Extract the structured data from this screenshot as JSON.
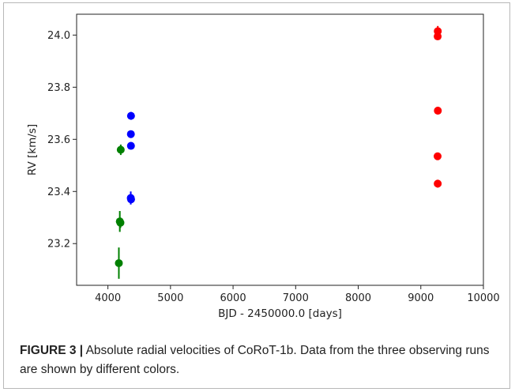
{
  "caption": {
    "label": "FIGURE 3 |",
    "text": "Absolute radial velocities of CoRoT-1b. Data from the three observing runs are shown by different colors."
  },
  "chart_data": {
    "type": "scatter",
    "xlabel": "BJD - 2450000.0 [days]",
    "ylabel": "RV [km/s]",
    "xlim": [
      3500,
      10000
    ],
    "ylim": [
      23.04,
      24.08
    ],
    "xticks": [
      4000,
      5000,
      6000,
      7000,
      8000,
      9000,
      10000
    ],
    "yticks": [
      23.2,
      23.4,
      23.6,
      23.8,
      24.0
    ],
    "ytick_labels": [
      "23.2",
      "23.4",
      "23.6",
      "23.8",
      "24.0"
    ],
    "grid": false,
    "series": [
      {
        "color": "#008000",
        "points": [
          {
            "x": 4175,
            "y": 23.125,
            "err": 0.06
          },
          {
            "x": 4190,
            "y": 23.285,
            "err": 0.04
          },
          {
            "x": 4200,
            "y": 23.28,
            "err": 0.02
          },
          {
            "x": 4205,
            "y": 23.56,
            "err": 0.02
          }
        ]
      },
      {
        "color": "#0000ff",
        "points": [
          {
            "x": 4365,
            "y": 23.375,
            "err": 0.025
          },
          {
            "x": 4370,
            "y": 23.37,
            "err": 0.015
          },
          {
            "x": 4368,
            "y": 23.575,
            "err": 0.01
          },
          {
            "x": 4367,
            "y": 23.62,
            "err": 0.01
          },
          {
            "x": 4369,
            "y": 23.69,
            "err": 0.015
          }
        ]
      },
      {
        "color": "#ff0000",
        "points": [
          {
            "x": 9270,
            "y": 23.43,
            "err": 0.015
          },
          {
            "x": 9268,
            "y": 23.535,
            "err": 0.01
          },
          {
            "x": 9272,
            "y": 23.71,
            "err": 0.015
          },
          {
            "x": 9269,
            "y": 23.995,
            "err": 0.01
          },
          {
            "x": 9271,
            "y": 24.015,
            "err": 0.02
          }
        ]
      }
    ]
  }
}
